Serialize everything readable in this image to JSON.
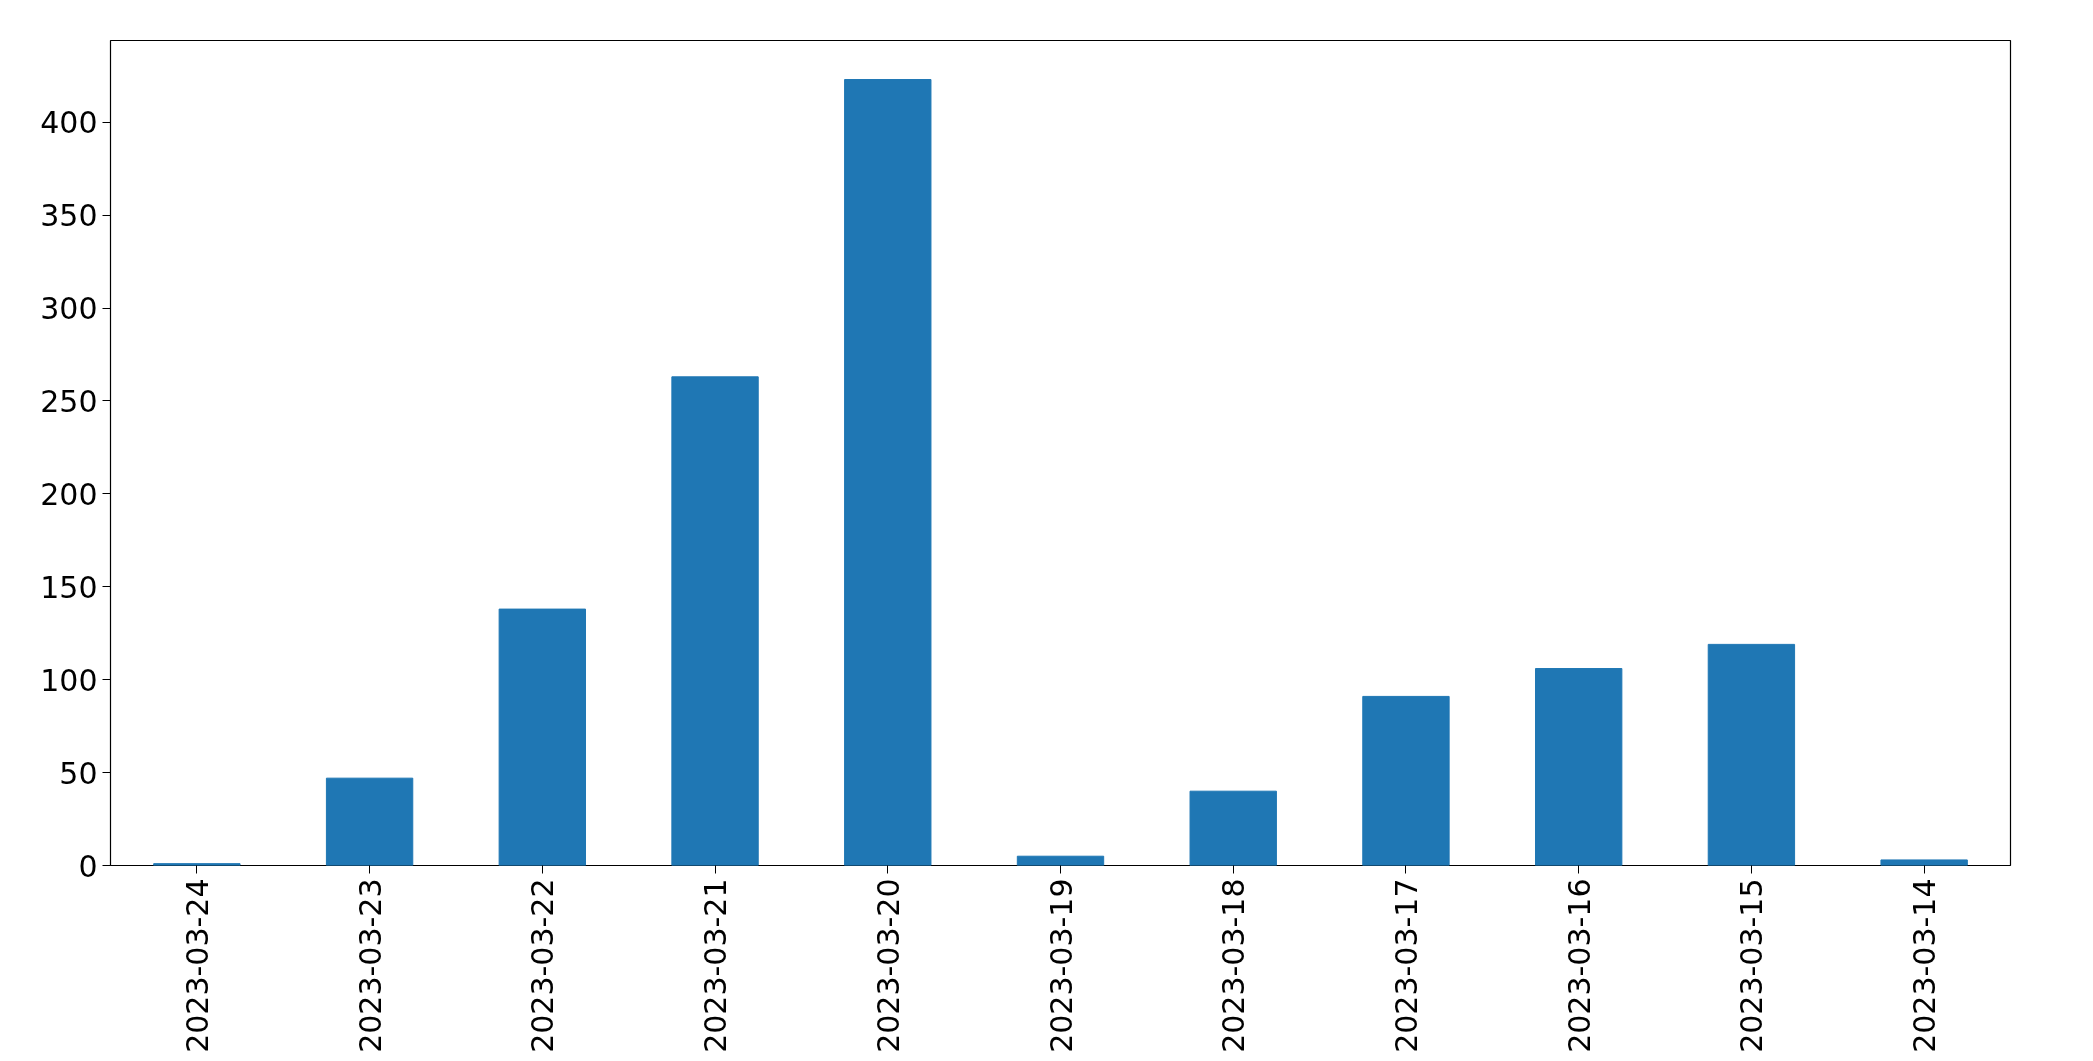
{
  "chart_data": {
    "type": "bar",
    "categories": [
      "2023-03-24",
      "2023-03-23",
      "2023-03-22",
      "2023-03-21",
      "2023-03-20",
      "2023-03-19",
      "2023-03-18",
      "2023-03-17",
      "2023-03-16",
      "2023-03-15",
      "2023-03-14"
    ],
    "values": [
      1,
      47,
      138,
      263,
      423,
      5,
      40,
      91,
      106,
      119,
      3
    ],
    "color": "#1f77b4",
    "ylim": [
      0,
      444
    ],
    "yticks": [
      0,
      50,
      100,
      150,
      200,
      250,
      300,
      350,
      400
    ],
    "grid": false
  }
}
